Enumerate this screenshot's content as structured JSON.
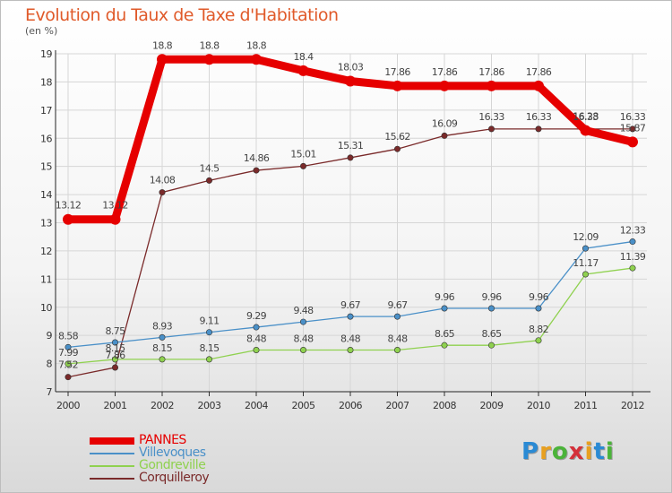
{
  "logo": {
    "letters": [
      "P",
      "r",
      "o",
      "x",
      "i",
      "t",
      "i"
    ]
  },
  "chart_data": {
    "type": "line",
    "title": "Evolution du Taux de Taxe d'Habitation",
    "subtitle": "(en %)",
    "x": [
      "2000",
      "2001",
      "2002",
      "2003",
      "2004",
      "2005",
      "2006",
      "2007",
      "2008",
      "2009",
      "2010",
      "2011",
      "2012"
    ],
    "ylim": [
      7,
      19
    ],
    "yticks": [
      "7",
      "8",
      "9",
      "10",
      "11",
      "12",
      "13",
      "14",
      "15",
      "16",
      "17",
      "18",
      "19"
    ],
    "grid": true,
    "legend_position": "bottom-left",
    "series": [
      {
        "name": "PANNES",
        "color": "#e60000",
        "width": "thick",
        "values": [
          13.12,
          13.12,
          18.8,
          18.8,
          18.8,
          18.4,
          18.03,
          17.86,
          17.86,
          17.86,
          17.86,
          16.28,
          15.87
        ],
        "labels": [
          "13.12",
          "13.12",
          "18.8",
          "18.8",
          "18.8",
          "18.4",
          "18.03",
          "17.86",
          "17.86",
          "17.86",
          "17.86",
          "16.28",
          "15.87"
        ]
      },
      {
        "name": "Villevoques",
        "color": "#4a90c8",
        "width": "thin",
        "values": [
          8.58,
          8.75,
          8.93,
          9.11,
          9.29,
          9.48,
          9.67,
          9.67,
          9.96,
          9.96,
          9.96,
          12.09,
          12.33
        ],
        "labels": [
          "8.58",
          "8.75",
          "8.93",
          "9.11",
          "9.29",
          "9.48",
          "9.67",
          "9.67",
          "9.96",
          "9.96",
          "9.96",
          "12.09",
          "12.33"
        ]
      },
      {
        "name": "Gondreville",
        "color": "#8fd14f",
        "width": "thin",
        "values": [
          7.99,
          8.15,
          8.15,
          8.15,
          8.48,
          8.48,
          8.48,
          8.48,
          8.65,
          8.65,
          8.82,
          11.17,
          11.39
        ],
        "labels": [
          "7.99",
          "8.15",
          "8.15",
          "8.15",
          "8.48",
          "8.48",
          "8.48",
          "8.48",
          "8.65",
          "8.65",
          "8.82",
          "11.17",
          "11.39"
        ]
      },
      {
        "name": "Corquilleroy",
        "color": "#7a2a2a",
        "width": "thin",
        "values": [
          7.52,
          7.86,
          14.08,
          14.5,
          14.86,
          15.01,
          15.31,
          15.62,
          16.09,
          16.33,
          16.33,
          16.33,
          16.33
        ],
        "labels": [
          "7.52",
          "7.86",
          "14.08",
          "14.5",
          "14.86",
          "15.01",
          "15.31",
          "15.62",
          "16.09",
          "16.33",
          "16.33",
          "16.33",
          "16.33"
        ]
      }
    ]
  }
}
